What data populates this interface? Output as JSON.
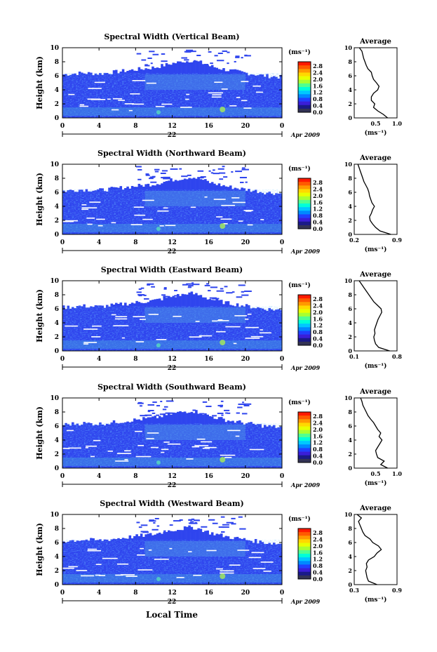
{
  "figure": {
    "xlabel": "Local Time",
    "date_label": "Apr 2009",
    "colorbar_unit": "(ms⁻¹)",
    "colorbar_ticks": [
      "2.8",
      "2.4",
      "2.0",
      "1.6",
      "1.2",
      "0.8",
      "0.4",
      "0.0"
    ],
    "colorbar_colors": [
      "#ff1a00",
      "#ff5a00",
      "#ff9900",
      "#ffd800",
      "#e8ff00",
      "#a8ff30",
      "#50ff90",
      "#00ffd8",
      "#00c8ff",
      "#0088ff",
      "#2040ff",
      "#3a1ed8",
      "#1a1a88",
      "#333355"
    ],
    "x_ticks": [
      "0",
      "4",
      "8",
      "12",
      "16",
      "20",
      "0"
    ],
    "y_ticks": [
      "0",
      "2",
      "4",
      "6",
      "8",
      "10"
    ],
    "ylabel": "Height (km)",
    "avg_title": "Average",
    "avg_xlabel": "(ms⁻¹)"
  },
  "chart_data": [
    {
      "type": "heatmap",
      "title": "Spectral Width (Vertical Beam)",
      "day_label": "22",
      "xlim": [
        0,
        24
      ],
      "ylim": [
        0,
        10
      ],
      "avg_profile": {
        "xlim": [
          0.0,
          1.0
        ],
        "xticks": [
          "0.5",
          "1.0"
        ],
        "heights": [
          0,
          0.5,
          1,
          1.5,
          2,
          2.5,
          3,
          3.5,
          4,
          4.5,
          5,
          5.5,
          6,
          6.5,
          7,
          7.5,
          8,
          8.5,
          9,
          9.5,
          10
        ],
        "values": [
          0.78,
          0.68,
          0.55,
          0.45,
          0.48,
          0.4,
          0.4,
          0.45,
          0.55,
          0.58,
          0.52,
          0.45,
          0.42,
          0.4,
          0.32,
          0.28,
          0.25,
          0.22,
          0.2,
          0.18,
          0.12
        ]
      }
    },
    {
      "type": "heatmap",
      "title": "Spectral Width (Northward Beam)",
      "day_label": "22",
      "xlim": [
        0,
        24
      ],
      "ylim": [
        0,
        10
      ],
      "avg_profile": {
        "xlim": [
          0.2,
          0.9
        ],
        "xticks": [
          "0.2",
          "0.9"
        ],
        "heights": [
          0,
          0.5,
          1,
          1.5,
          2,
          2.5,
          3,
          3.5,
          4,
          4.5,
          5,
          5.5,
          6,
          6.5,
          7,
          7.5,
          8,
          8.5,
          9,
          9.5,
          10
        ],
        "values": [
          0.8,
          0.62,
          0.55,
          0.5,
          0.46,
          0.45,
          0.48,
          0.5,
          0.53,
          0.49,
          0.47,
          0.45,
          0.44,
          0.42,
          0.39,
          0.36,
          0.34,
          0.32,
          0.3,
          0.28,
          0.26
        ]
      }
    },
    {
      "type": "heatmap",
      "title": "Spectral Width (Eastward Beam)",
      "day_label": "22",
      "xlim": [
        0,
        24
      ],
      "ylim": [
        0,
        10
      ],
      "avg_profile": {
        "xlim": [
          0.1,
          0.8
        ],
        "xticks": [
          "0.1",
          "0.8"
        ],
        "heights": [
          0,
          0.5,
          1,
          1.5,
          2,
          2.5,
          3,
          3.5,
          4,
          4.5,
          5,
          5.5,
          6,
          6.5,
          7,
          7.5,
          8,
          8.5,
          9,
          9.5,
          10
        ],
        "values": [
          0.68,
          0.5,
          0.45,
          0.43,
          0.42,
          0.44,
          0.43,
          0.45,
          0.47,
          0.49,
          0.52,
          0.55,
          0.54,
          0.48,
          0.42,
          0.38,
          0.34,
          0.3,
          0.26,
          0.22,
          0.18
        ]
      }
    },
    {
      "type": "heatmap",
      "title": "Spectral Width (Southward Beam)",
      "day_label": "22",
      "xlim": [
        0,
        24
      ],
      "ylim": [
        0,
        10
      ],
      "avg_profile": {
        "xlim": [
          0.0,
          1.0
        ],
        "xticks": [
          "0.5",
          "1.0"
        ],
        "heights": [
          0,
          0.5,
          1,
          1.5,
          2,
          2.5,
          3,
          3.5,
          4,
          4.5,
          5,
          5.5,
          6,
          6.5,
          7,
          7.5,
          8,
          8.5,
          9,
          9.5,
          10
        ],
        "values": [
          0.78,
          0.62,
          0.7,
          0.55,
          0.52,
          0.5,
          0.55,
          0.6,
          0.65,
          0.58,
          0.62,
          0.55,
          0.5,
          0.45,
          0.38,
          0.32,
          0.28,
          0.24,
          0.2,
          0.18,
          0.15
        ]
      }
    },
    {
      "type": "heatmap",
      "title": "Spectral Width (Westward Beam)",
      "day_label": "22",
      "xlim": [
        0,
        24
      ],
      "ylim": [
        0,
        10
      ],
      "avg_profile": {
        "xlim": [
          0.3,
          0.9
        ],
        "xticks": [
          "0.3",
          "0.9"
        ],
        "heights": [
          0,
          0.5,
          1,
          1.5,
          2,
          2.5,
          3,
          3.5,
          4,
          4.5,
          5,
          5.5,
          6,
          6.5,
          7,
          7.5,
          8,
          8.5,
          9,
          9.5,
          10
        ],
        "values": [
          0.62,
          0.5,
          0.48,
          0.47,
          0.46,
          0.48,
          0.47,
          0.5,
          0.58,
          0.62,
          0.68,
          0.64,
          0.56,
          0.52,
          0.45,
          0.42,
          0.4,
          0.38,
          0.36,
          0.4,
          0.34
        ]
      }
    }
  ]
}
